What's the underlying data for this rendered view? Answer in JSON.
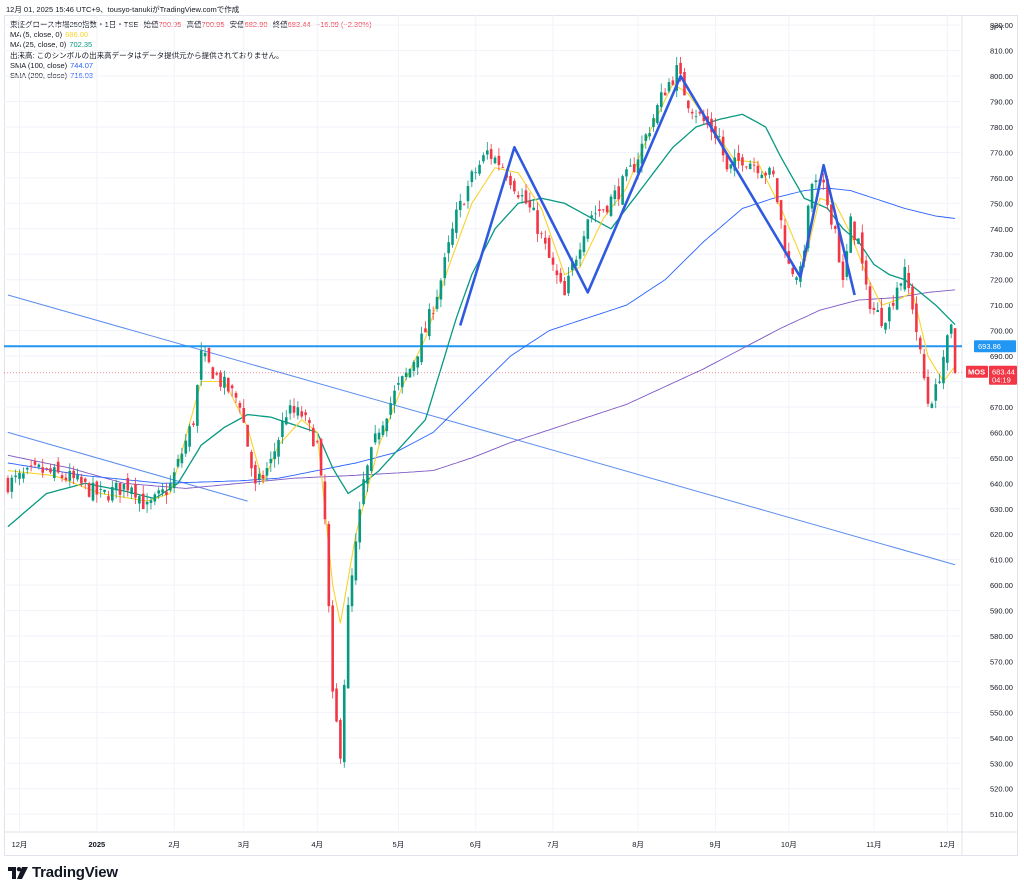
{
  "header": {
    "title": "12月 01, 2025 15:46 UTC+9、tousyo-tanukiがTradingView.comで作成"
  },
  "legend": {
    "symbol_line": {
      "name": "東証グロース市場250指数・1日・TSE",
      "open_label": "始値",
      "open_value": "700.95",
      "high_label": "高値",
      "high_value": "700.95",
      "low_label": "安値",
      "low_value": "682.90",
      "close_label": "終値",
      "close_value": "683.44",
      "change": "−16.09 (−2.30%)"
    },
    "indicators": [
      {
        "label": "MA (5, close, 0)",
        "value": "686.00",
        "color": "#f7d32c"
      },
      {
        "label": "MA (25, close, 0)",
        "value": "702.35",
        "color": "#089981"
      },
      {
        "label": "出来高: このシンボルの出来高データはデータ提供元から提供されておりません。",
        "value": "",
        "color": "#131722"
      },
      {
        "label": "SMA (100, close)",
        "value": "744.07",
        "color": "#2962ff"
      },
      {
        "label": "SMA (200, close)",
        "value": "716.03",
        "color": "#7e57c2"
      }
    ]
  },
  "footer": {
    "brand": "TradingView"
  },
  "colors": {
    "up": "#089981",
    "down": "#f23645",
    "ma5": "#f7d32c",
    "ma25": "#089981",
    "sma100": "#2962ff",
    "sma200": "#7e57c2",
    "trend": "#5b8def",
    "pattern": "#2f5ae0",
    "hline": "#2196f3",
    "grid": "#f0f3fa"
  },
  "chart_data": {
    "type": "candlestick",
    "currency": "JPY",
    "ylim": [
      503,
      824
    ],
    "y_ticks": [
      510,
      520,
      530,
      540,
      550,
      560,
      570,
      580,
      590,
      600,
      610,
      620,
      630,
      640,
      650,
      660,
      670,
      680,
      690,
      700,
      710,
      720,
      730,
      740,
      750,
      760,
      770,
      780,
      790,
      800,
      810,
      820
    ],
    "x_ticks": [
      {
        "index": 3,
        "label": "12月"
      },
      {
        "index": 23,
        "label": "2025"
      },
      {
        "index": 43,
        "label": "2月"
      },
      {
        "index": 61,
        "label": "3月"
      },
      {
        "index": 80,
        "label": "4月"
      },
      {
        "index": 101,
        "label": "5月"
      },
      {
        "index": 121,
        "label": "6月"
      },
      {
        "index": 141,
        "label": "7月"
      },
      {
        "index": 163,
        "label": "8月"
      },
      {
        "index": 183,
        "label": "9月"
      },
      {
        "index": 202,
        "label": "10月"
      },
      {
        "index": 224,
        "label": "11月"
      },
      {
        "index": 243,
        "label": "12月"
      }
    ],
    "price_labels": [
      {
        "value": 693.86,
        "text": "693.86",
        "color": "#2196f3"
      },
      {
        "value": 683.44,
        "text": "683.44",
        "sub": "04:19",
        "tag": "MOS",
        "color": "#f23645"
      }
    ],
    "horizontal_line": 693.86,
    "last_close_line": 683.44,
    "trendlines": [
      {
        "from": [
          0,
          714
        ],
        "to": [
          245,
          608
        ]
      },
      {
        "from": [
          0,
          660
        ],
        "to": [
          62,
          633
        ]
      }
    ],
    "pattern_line": [
      [
        117,
        702
      ],
      [
        131,
        772
      ],
      [
        150,
        715
      ],
      [
        174,
        800
      ],
      [
        205,
        721
      ],
      [
        211,
        765
      ],
      [
        219,
        714
      ]
    ],
    "anchors": {
      "close": [
        [
          0,
          640
        ],
        [
          8,
          645
        ],
        [
          16,
          642
        ],
        [
          24,
          635
        ],
        [
          32,
          640
        ],
        [
          36,
          630
        ],
        [
          42,
          639
        ],
        [
          48,
          665
        ],
        [
          50,
          690
        ],
        [
          55,
          680
        ],
        [
          60,
          672
        ],
        [
          64,
          638
        ],
        [
          68,
          648
        ],
        [
          72,
          668
        ],
        [
          76,
          667
        ],
        [
          80,
          655
        ],
        [
          82,
          625
        ],
        [
          84,
          555
        ],
        [
          86,
          535
        ],
        [
          88,
          590
        ],
        [
          90,
          615
        ],
        [
          92,
          640
        ],
        [
          96,
          662
        ],
        [
          100,
          675
        ],
        [
          104,
          685
        ],
        [
          108,
          700
        ],
        [
          112,
          720
        ],
        [
          116,
          745
        ],
        [
          120,
          760
        ],
        [
          124,
          770
        ],
        [
          128,
          765
        ],
        [
          132,
          755
        ],
        [
          136,
          745
        ],
        [
          140,
          728
        ],
        [
          144,
          713
        ],
        [
          146,
          725
        ],
        [
          150,
          745
        ],
        [
          154,
          748
        ],
        [
          158,
          755
        ],
        [
          162,
          765
        ],
        [
          166,
          780
        ],
        [
          170,
          795
        ],
        [
          173,
          802
        ],
        [
          176,
          790
        ],
        [
          180,
          782
        ],
        [
          184,
          776
        ],
        [
          186,
          762
        ],
        [
          190,
          768
        ],
        [
          194,
          765
        ],
        [
          198,
          760
        ],
        [
          202,
          725
        ],
        [
          205,
          722
        ],
        [
          208,
          758
        ],
        [
          211,
          755
        ],
        [
          214,
          740
        ],
        [
          216,
          718
        ],
        [
          218,
          742
        ],
        [
          220,
          735
        ],
        [
          222,
          715
        ],
        [
          224,
          708
        ],
        [
          226,
          705
        ],
        [
          228,
          708
        ],
        [
          230,
          718
        ],
        [
          232,
          722
        ],
        [
          234,
          710
        ],
        [
          236,
          690
        ],
        [
          238,
          672
        ],
        [
          240,
          676
        ],
        [
          242,
          690
        ],
        [
          244,
          700
        ],
        [
          245,
          683.44
        ]
      ],
      "ma5": [
        [
          0,
          645
        ],
        [
          12,
          643
        ],
        [
          24,
          636
        ],
        [
          36,
          633
        ],
        [
          42,
          636
        ],
        [
          50,
          680
        ],
        [
          56,
          680
        ],
        [
          62,
          662
        ],
        [
          66,
          640
        ],
        [
          70,
          655
        ],
        [
          76,
          665
        ],
        [
          80,
          660
        ],
        [
          84,
          600
        ],
        [
          86,
          585
        ],
        [
          90,
          620
        ],
        [
          96,
          655
        ],
        [
          102,
          678
        ],
        [
          108,
          697
        ],
        [
          114,
          725
        ],
        [
          120,
          750
        ],
        [
          126,
          764
        ],
        [
          132,
          762
        ],
        [
          138,
          748
        ],
        [
          144,
          722
        ],
        [
          148,
          725
        ],
        [
          154,
          744
        ],
        [
          160,
          756
        ],
        [
          166,
          778
        ],
        [
          172,
          797
        ],
        [
          176,
          793
        ],
        [
          182,
          780
        ],
        [
          188,
          767
        ],
        [
          194,
          766
        ],
        [
          200,
          748
        ],
        [
          206,
          726
        ],
        [
          210,
          752
        ],
        [
          214,
          750
        ],
        [
          218,
          738
        ],
        [
          222,
          722
        ],
        [
          226,
          710
        ],
        [
          230,
          712
        ],
        [
          234,
          715
        ],
        [
          238,
          690
        ],
        [
          242,
          680
        ],
        [
          245,
          686
        ]
      ],
      "ma25": [
        [
          0,
          623
        ],
        [
          10,
          636
        ],
        [
          20,
          640
        ],
        [
          30,
          637
        ],
        [
          38,
          634
        ],
        [
          44,
          640
        ],
        [
          50,
          655
        ],
        [
          56,
          662
        ],
        [
          62,
          667
        ],
        [
          68,
          666
        ],
        [
          74,
          663
        ],
        [
          80,
          660
        ],
        [
          84,
          646
        ],
        [
          88,
          636
        ],
        [
          92,
          640
        ],
        [
          96,
          645
        ],
        [
          102,
          655
        ],
        [
          108,
          665
        ],
        [
          112,
          685
        ],
        [
          116,
          705
        ],
        [
          120,
          722
        ],
        [
          126,
          740
        ],
        [
          132,
          750
        ],
        [
          138,
          752
        ],
        [
          144,
          750
        ],
        [
          150,
          745
        ],
        [
          156,
          740
        ],
        [
          160,
          748
        ],
        [
          166,
          760
        ],
        [
          172,
          772
        ],
        [
          178,
          780
        ],
        [
          184,
          783
        ],
        [
          190,
          785
        ],
        [
          196,
          780
        ],
        [
          200,
          768
        ],
        [
          206,
          752
        ],
        [
          212,
          748
        ],
        [
          216,
          740
        ],
        [
          220,
          735
        ],
        [
          224,
          726
        ],
        [
          228,
          722
        ],
        [
          232,
          720
        ],
        [
          236,
          715
        ],
        [
          240,
          710
        ],
        [
          245,
          702.35
        ]
      ],
      "sma100": [
        [
          0,
          648
        ],
        [
          20,
          643
        ],
        [
          40,
          640
        ],
        [
          60,
          641
        ],
        [
          70,
          642
        ],
        [
          80,
          645
        ],
        [
          90,
          648
        ],
        [
          100,
          652
        ],
        [
          110,
          660
        ],
        [
          120,
          675
        ],
        [
          130,
          690
        ],
        [
          140,
          700
        ],
        [
          150,
          705
        ],
        [
          160,
          710
        ],
        [
          170,
          720
        ],
        [
          180,
          735
        ],
        [
          190,
          748
        ],
        [
          198,
          752
        ],
        [
          206,
          755
        ],
        [
          212,
          756
        ],
        [
          218,
          755
        ],
        [
          224,
          752
        ],
        [
          232,
          748
        ],
        [
          240,
          745
        ],
        [
          245,
          744.07
        ]
      ],
      "sma200": [
        [
          0,
          651
        ],
        [
          16,
          646
        ],
        [
          30,
          640
        ],
        [
          46,
          638
        ],
        [
          60,
          640
        ],
        [
          74,
          642
        ],
        [
          88,
          643
        ],
        [
          100,
          644
        ],
        [
          110,
          645
        ],
        [
          120,
          650
        ],
        [
          130,
          656
        ],
        [
          140,
          661
        ],
        [
          150,
          666
        ],
        [
          160,
          671
        ],
        [
          170,
          678
        ],
        [
          180,
          685
        ],
        [
          190,
          693
        ],
        [
          200,
          701
        ],
        [
          210,
          708
        ],
        [
          220,
          712
        ],
        [
          230,
          713
        ],
        [
          238,
          715
        ],
        [
          245,
          716.03
        ]
      ]
    }
  }
}
